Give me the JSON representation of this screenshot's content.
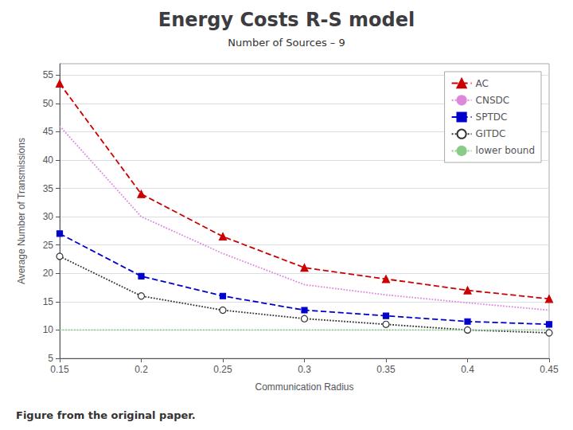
{
  "chart_data": {
    "type": "line",
    "title": "Energy Costs R-S model",
    "subtitle": "Number of Sources – 9",
    "caption": "Figure from the original paper.",
    "x_label": "Communication Radius",
    "y_label": "Average Number of Transmissions",
    "x": [
      0.15,
      0.2,
      0.25,
      0.3,
      0.35,
      0.4,
      0.45
    ],
    "xlim": [
      0.15,
      0.45
    ],
    "ylim": [
      5,
      57
    ],
    "xticks": [
      0.15,
      0.2,
      0.25,
      0.3,
      0.35,
      0.4,
      0.45
    ],
    "yticks": [
      5,
      10,
      15,
      20,
      25,
      30,
      35,
      40,
      45,
      50,
      55
    ],
    "grid": true,
    "legend": "upper right",
    "series": [
      {
        "name": "AC",
        "color": "#cc0000",
        "marker": "triangle",
        "line_style": "dashed",
        "values": [
          53.5,
          34.0,
          26.5,
          21.0,
          19.0,
          17.0,
          15.5
        ]
      },
      {
        "name": "CNSDC",
        "color": "#dd88dd",
        "marker": "none",
        "line_style": "dotted",
        "values": [
          46.0,
          30.0,
          23.5,
          18.0,
          16.2,
          14.8,
          13.5
        ]
      },
      {
        "name": "SPTDC",
        "color": "#0000cc",
        "marker": "square",
        "line_style": "dashed",
        "values": [
          27.0,
          19.5,
          16.0,
          13.5,
          12.5,
          11.5,
          11.0
        ]
      },
      {
        "name": "GITDC",
        "color": "#333333",
        "marker": "open_circle",
        "line_style": "dotted",
        "values": [
          23.0,
          16.0,
          13.5,
          12.0,
          11.0,
          10.0,
          9.5
        ]
      },
      {
        "name": "lower bound",
        "color": "#88cc88",
        "marker": "none",
        "line_style": "dotted",
        "values": [
          10.0,
          10.0,
          10.0,
          10.0,
          10.0,
          10.0,
          10.0
        ]
      }
    ]
  }
}
